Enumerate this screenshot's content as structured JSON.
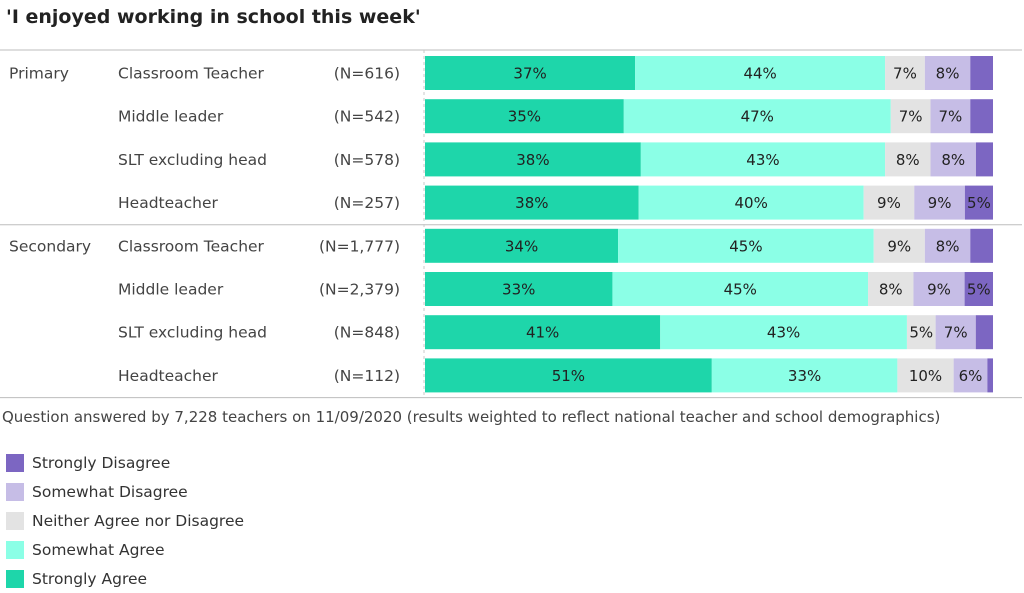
{
  "chart_data": {
    "type": "bar",
    "orientation": "horizontal-stacked-100",
    "title": "'I enjoyed working in school this week'",
    "footnote": "Question answered by 7,228 teachers on 11/09/2020 (results weighted to reflect national teacher and school demographics)",
    "legend": [
      {
        "key": "strongly_disagree",
        "label": "Strongly Disagree",
        "color": "#7c66c2"
      },
      {
        "key": "somewhat_disagree",
        "label": "Somewhat Disagree",
        "color": "#c6bde6"
      },
      {
        "key": "neither",
        "label": "Neither Agree nor Disagree",
        "color": "#e3e3e3"
      },
      {
        "key": "somewhat_agree",
        "label": "Somewhat Agree",
        "color": "#8bffe6"
      },
      {
        "key": "strongly_agree",
        "label": "Strongly Agree",
        "color": "#1ed6aa"
      }
    ],
    "segment_order": [
      "strongly_agree",
      "somewhat_agree",
      "neither",
      "somewhat_disagree",
      "strongly_disagree"
    ],
    "groups": [
      {
        "name": "Primary",
        "rows": [
          {
            "role": "Classroom Teacher",
            "n": "(N=616)",
            "values": [
              37,
              44,
              7,
              8,
              4
            ],
            "labels": [
              "37%",
              "44%",
              "7%",
              "8%",
              ""
            ]
          },
          {
            "role": "Middle leader",
            "n": "(N=542)",
            "values": [
              35,
              47,
              7,
              7,
              4
            ],
            "labels": [
              "35%",
              "47%",
              "7%",
              "7%",
              ""
            ]
          },
          {
            "role": "SLT excluding head",
            "n": "(N=578)",
            "values": [
              38,
              43,
              8,
              8,
              3
            ],
            "labels": [
              "38%",
              "43%",
              "8%",
              "8%",
              ""
            ]
          },
          {
            "role": "Headteacher",
            "n": "(N=257)",
            "values": [
              38,
              40,
              9,
              9,
              5
            ],
            "labels": [
              "38%",
              "40%",
              "9%",
              "9%",
              "5%"
            ]
          }
        ]
      },
      {
        "name": "Secondary",
        "rows": [
          {
            "role": "Classroom Teacher",
            "n": "(N=1,777)",
            "values": [
              34,
              45,
              9,
              8,
              4
            ],
            "labels": [
              "34%",
              "45%",
              "9%",
              "8%",
              ""
            ]
          },
          {
            "role": "Middle leader",
            "n": "(N=2,379)",
            "values": [
              33,
              45,
              8,
              9,
              5
            ],
            "labels": [
              "33%",
              "45%",
              "8%",
              "9%",
              "5%"
            ]
          },
          {
            "role": "SLT excluding head",
            "n": "(N=848)",
            "values": [
              41,
              43,
              5,
              7,
              3
            ],
            "labels": [
              "41%",
              "43%",
              "5%",
              "7%",
              ""
            ]
          },
          {
            "role": "Headteacher",
            "n": "(N=112)",
            "values": [
              51,
              33,
              10,
              6,
              1
            ],
            "labels": [
              "51%",
              "33%",
              "10%",
              "6%",
              ""
            ]
          }
        ]
      }
    ]
  }
}
